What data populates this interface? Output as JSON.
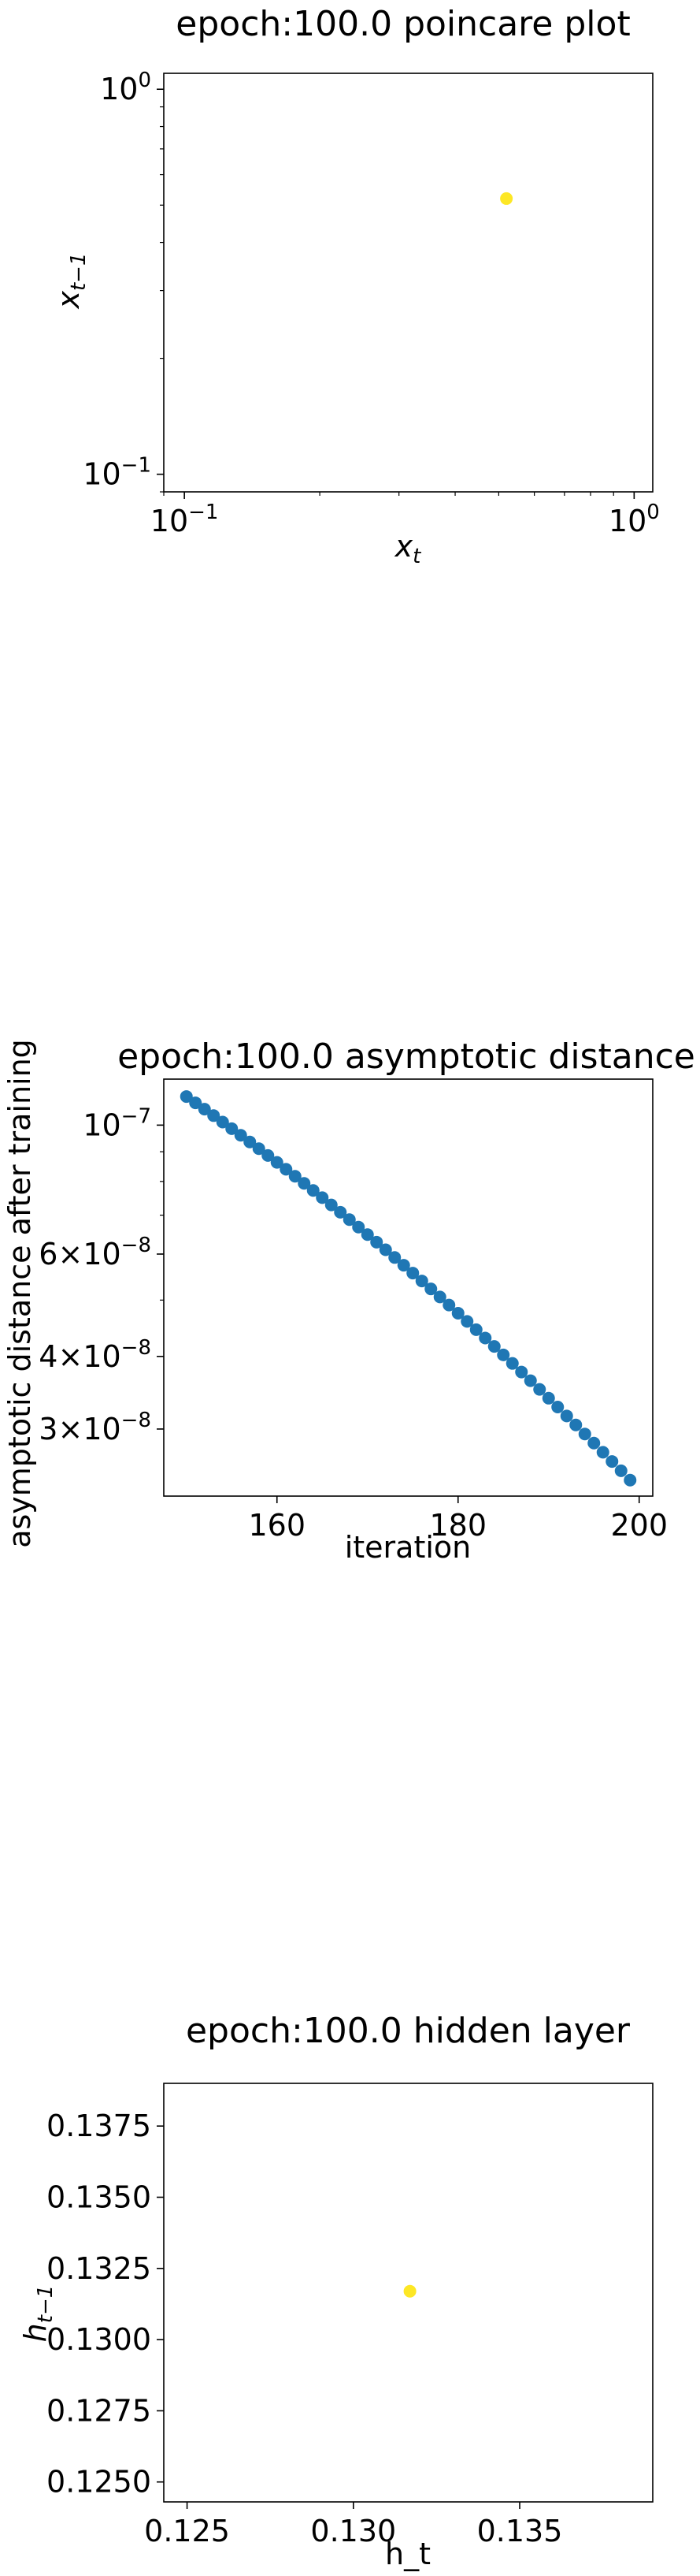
{
  "chart_data": [
    {
      "type": "scatter",
      "title": "epoch:100.0 poincare plot",
      "xlabel": "x",
      "xlabel_sub": "t",
      "ylabel": "x",
      "ylabel_sub": "t−1",
      "xscale": "log",
      "yscale": "log",
      "xlim": [
        0.09,
        1.1
      ],
      "ylim": [
        0.09,
        1.1
      ],
      "x_ticks": [
        {
          "value": 0.1,
          "base": "10",
          "exp": "−1"
        },
        {
          "value": 1,
          "base": "10",
          "exp": "0"
        }
      ],
      "y_ticks": [
        {
          "value": 0.1,
          "base": "10",
          "exp": "−1"
        },
        {
          "value": 1,
          "base": "10",
          "exp": "0"
        }
      ],
      "marker_color": "#fde725",
      "points": [
        {
          "x": 0.52,
          "y": 0.52
        }
      ]
    },
    {
      "type": "scatter",
      "title": "epoch:100.0 asymptotic distance",
      "xlabel": "iteration",
      "ylabel": "asymptotic distance after training",
      "yscale": "log",
      "xlim": [
        147.5,
        201.5
      ],
      "ylim": [
        2.3e-08,
        1.2e-07
      ],
      "x_ticks": [
        {
          "value": 160,
          "label": "160"
        },
        {
          "value": 180,
          "label": "180"
        },
        {
          "value": 200,
          "label": "200"
        }
      ],
      "y_ticks": [
        {
          "value": 1e-07,
          "base": "10",
          "exp": "−7"
        },
        {
          "value": 6e-08,
          "label": "6×10",
          "exp": "−8"
        },
        {
          "value": 4e-08,
          "label": "4×10",
          "exp": "−8"
        },
        {
          "value": 3e-08,
          "label": "3×10",
          "exp": "−8"
        }
      ],
      "marker_color": "#1f77b4",
      "x_start": 150,
      "x_end": 199,
      "y_start": 1.12e-07,
      "y_end": 2.45e-08
    },
    {
      "type": "scatter",
      "title": "epoch:100.0 hidden layer",
      "xlabel": "h_t",
      "ylabel": "h",
      "ylabel_sub": "t−1",
      "xlim": [
        0.1243,
        0.139
      ],
      "ylim": [
        0.1243,
        0.139
      ],
      "x_ticks": [
        {
          "value": 0.125,
          "label": "0.125"
        },
        {
          "value": 0.13,
          "label": "0.130"
        },
        {
          "value": 0.135,
          "label": "0.135"
        }
      ],
      "y_ticks": [
        {
          "value": 0.125,
          "label": "0.1250"
        },
        {
          "value": 0.1275,
          "label": "0.1275"
        },
        {
          "value": 0.13,
          "label": "0.1300"
        },
        {
          "value": 0.1325,
          "label": "0.1325"
        },
        {
          "value": 0.135,
          "label": "0.1350"
        },
        {
          "value": 0.1375,
          "label": "0.1375"
        }
      ],
      "marker_color": "#fde725",
      "points": [
        {
          "x": 0.1317,
          "y": 0.1317
        }
      ]
    }
  ]
}
